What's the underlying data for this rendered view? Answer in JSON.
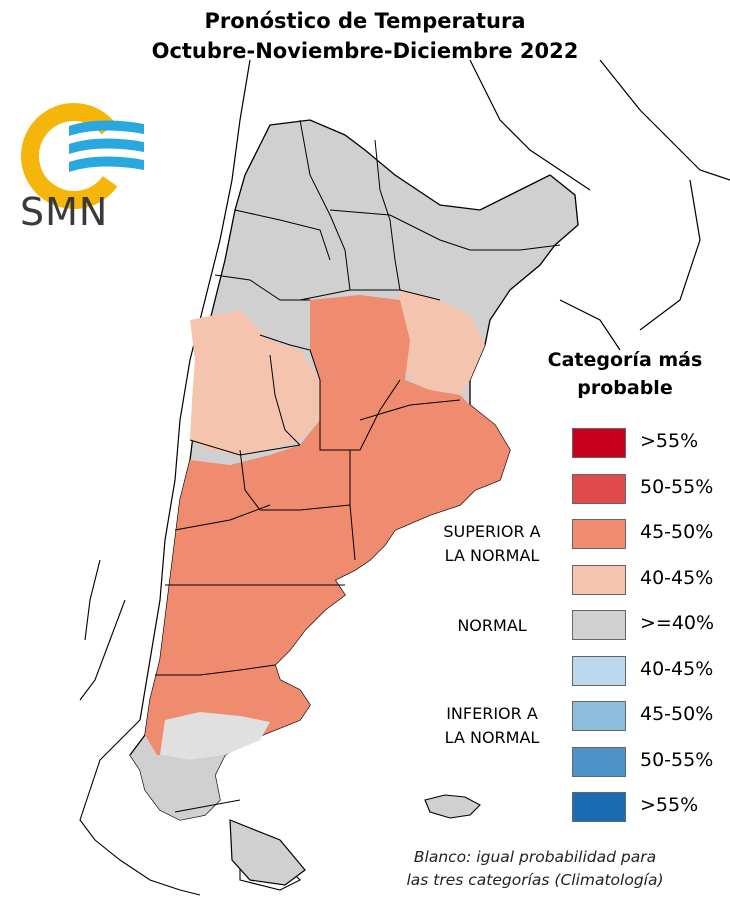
{
  "header": {
    "title_line1": "Pronóstico de Temperatura",
    "title_line2": "Octubre-Noviembre-Diciembre 2022"
  },
  "logo": {
    "text": "SMN",
    "ring_color": "#f5b50a",
    "wave_color": "#29a8e0"
  },
  "legend": {
    "title_line1": "Categoría más",
    "title_line2": "probable",
    "items": [
      {
        "label": ">55%",
        "color": "#c8001e"
      },
      {
        "label": "50-55%",
        "color": "#e04a4a"
      },
      {
        "label": "45-50%",
        "color": "#ef8c70"
      },
      {
        "label": "40-45%",
        "color": "#f5c4ae"
      },
      {
        "label": ">=40%",
        "color": "#d0d0d0"
      },
      {
        "label": "40-45%",
        "color": "#bcd8ec"
      },
      {
        "label": "45-50%",
        "color": "#8ebedf"
      },
      {
        "label": "50-55%",
        "color": "#4b93c8"
      },
      {
        "label": ">55%",
        "color": "#1a6db3"
      }
    ],
    "category_superior_line1": "SUPERIOR A",
    "category_superior_line2": "LA NORMAL",
    "category_normal": "NORMAL",
    "category_inferior_line1": "INFERIOR A",
    "category_inferior_line2": "LA NORMAL"
  },
  "footnote": {
    "line1": "Blanco: igual probabilidad para",
    "line2": "las tres categorías (Climatología)"
  }
}
